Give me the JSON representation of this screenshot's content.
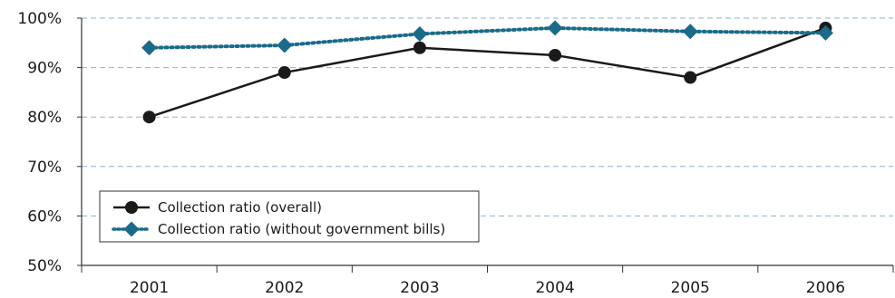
{
  "chart_data": {
    "type": "line",
    "title": "",
    "xlabel": "",
    "ylabel": "",
    "categories": [
      "2001",
      "2002",
      "2003",
      "2004",
      "2005",
      "2006"
    ],
    "ylim": [
      50,
      100
    ],
    "yticks": [
      50,
      60,
      70,
      80,
      90,
      100
    ],
    "ytick_labels": [
      "50%",
      "60%",
      "70%",
      "80%",
      "90%",
      "100%"
    ],
    "grid": "horizontal dashed",
    "legend_position": "bottom-left",
    "series": [
      {
        "name": "Collection ratio (overall)",
        "values": [
          80,
          89,
          94,
          92.5,
          88,
          98
        ],
        "color": "#1a1a1a",
        "line_style": "solid",
        "marker": "circle"
      },
      {
        "name": "Collection ratio (without government bills)",
        "values": [
          94,
          94.5,
          96.8,
          98,
          97.3,
          97
        ],
        "color": "#1a6a8a",
        "line_style": "dotted",
        "marker": "diamond"
      }
    ]
  }
}
